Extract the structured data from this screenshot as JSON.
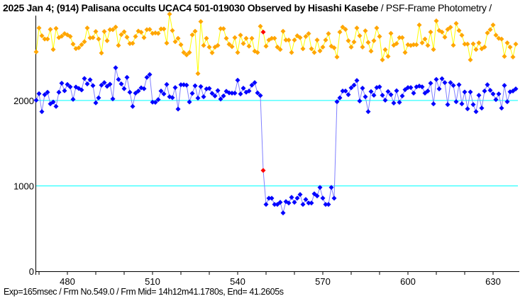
{
  "title": {
    "main": "2025 Jan 4; (914) Palisana occults UCAC4 501-019030 Observed by Hisashi Kasebe",
    "sub": " / PSF-Frame Photometry /"
  },
  "footer": "Exp=165msec / Frm No.549.0 / Frm Mid= 14h12m41.1780s,  End= 41.2605s",
  "chart_data": {
    "type": "line",
    "title": "2025 Jan 4; (914) Palisana occults UCAC4 501-019030 Observed by Hisashi Kasebe / PSF-Frame Photometry /",
    "xlabel": "",
    "ylabel": "",
    "xlim": [
      468.75,
      638.75
    ],
    "ylim": [
      0,
      2920
    ],
    "x_ticks": [
      480,
      510,
      540,
      570,
      600,
      630
    ],
    "x_minor_step": 10,
    "y_ticks": [
      0,
      1000,
      2000
    ],
    "reference_lines": [
      {
        "y": 2000,
        "color": "#00ffff"
      },
      {
        "y": 1000,
        "color": "#00ffff"
      }
    ],
    "grid": false,
    "legend": "none",
    "x_start": 469,
    "x_step": 1,
    "highlight": {
      "x": 549,
      "color": "#ff0000"
    },
    "series": [
      {
        "marker_color": "#ffa500",
        "line_color": "#ffff00",
        "values": [
          2570,
          2849,
          2758,
          2720,
          2720,
          2833,
          2598,
          2844,
          2736,
          2753,
          2783,
          2769,
          2750,
          2661,
          2608,
          2617,
          2653,
          2689,
          2849,
          2733,
          2736,
          2808,
          2720,
          2556,
          2808,
          2700,
          2830,
          2830,
          2860,
          2645,
          2772,
          2805,
          2742,
          2667,
          2670,
          2750,
          2813,
          2800,
          2736,
          2830,
          2833,
          2786,
          2791,
          2786,
          2838,
          2838,
          2672,
          3012,
          2819,
          2689,
          2728,
          2653,
          2562,
          2534,
          2562,
          2769,
          2811,
          2315,
          2924,
          2645,
          2728,
          2625,
          2559,
          2625,
          2645,
          2841,
          2841,
          2728,
          2659,
          2631,
          2736,
          2562,
          2766,
          2667,
          2728,
          2636,
          2728,
          2578,
          2562,
          2869,
          2802,
          2636,
          2708,
          2728,
          2728,
          2625,
          2598,
          2811,
          2708,
          2708,
          2562,
          2708,
          2758,
          2736,
          2606,
          2750,
          2783,
          2606,
          2562,
          2708,
          2581,
          2625,
          2708,
          2783,
          2636,
          2617,
          2509,
          2802,
          2860,
          2833,
          2700,
          2625,
          2686,
          2849,
          2758,
          2625,
          2816,
          2680,
          2578,
          2700,
          2849,
          2750,
          2476,
          2595,
          2517,
          2786,
          2647,
          2667,
          2736,
          2736,
          2562,
          2653,
          2645,
          2653,
          2653,
          2885,
          2675,
          2720,
          2645,
          2802,
          2598,
          2932,
          2819,
          2802,
          2742,
          2833,
          2858,
          2647,
          2902,
          2819,
          2764,
          2661,
          2661,
          2476,
          2664,
          2598,
          2675,
          2606,
          2625,
          2791,
          2830,
          2885,
          2766,
          2728,
          2720,
          2517,
          2675,
          2625,
          2509,
          2661
        ]
      },
      {
        "marker_color": "#0000ff",
        "line_color": "#8080ff",
        "values": [
          2003,
          2080,
          1870,
          2069,
          2097,
          1961,
          1983,
          1931,
          2097,
          2202,
          2114,
          2188,
          2160,
          2014,
          2158,
          2141,
          2124,
          2257,
          2194,
          2243,
          2174,
          1972,
          2031,
          2180,
          2210,
          2166,
          2191,
          2019,
          2384,
          2247,
          2194,
          2138,
          2271,
          2097,
          1931,
          2086,
          2111,
          2149,
          2138,
          2271,
          2304,
          1981,
          1978,
          2011,
          2111,
          2077,
          2188,
          2044,
          2033,
          2152,
          1900,
          2185,
          2185,
          2180,
          1983,
          2083,
          2172,
          2028,
          2163,
          2044,
          2136,
          2141,
          2083,
          2053,
          2116,
          2017,
          2053,
          2108,
          2089,
          2086,
          2086,
          2238,
          2077,
          2144,
          2097,
          2111,
          2180,
          2210,
          2089,
          2058,
          1181,
          783,
          855,
          855,
          783,
          783,
          808,
          683,
          816,
          799,
          866,
          808,
          857,
          899,
          783,
          841,
          799,
          799,
          907,
          882,
          982,
          857,
          783,
          783,
          982,
          855,
          1986,
          2031,
          2111,
          2111,
          2069,
          2149,
          2180,
          2235,
          1994,
          2144,
          2044,
          1870,
          2105,
          2061,
          2152,
          2160,
          2061,
          2003,
          2105,
          2069,
          1970,
          2114,
          1978,
          2053,
          2127,
          2152,
          2152,
          2086,
          2160,
          2169,
          2160,
          2086,
          2111,
          2202,
          1961,
          2247,
          2136,
          2255,
          2210,
          1953,
          2210,
          2177,
          1986,
          2185,
          1961,
          2100,
          1903,
          2100,
          1953,
          1870,
          2061,
          1911,
          2111,
          2185,
          2119,
          2077,
          2011,
          2077,
          1911,
          2177,
          1986,
          2102,
          2111,
          2136
        ]
      }
    ]
  }
}
